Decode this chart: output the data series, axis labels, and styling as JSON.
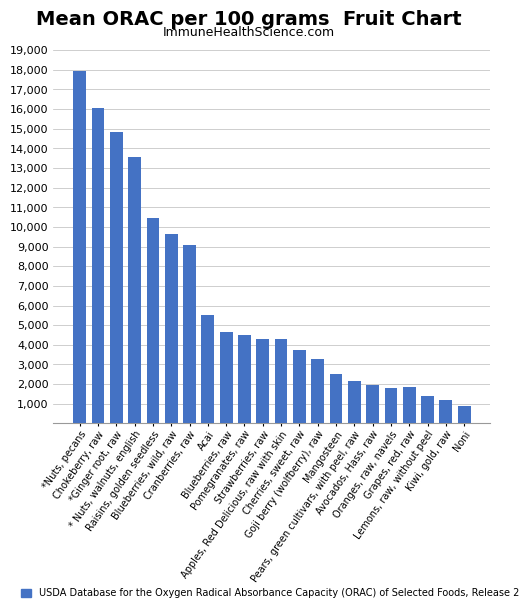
{
  "title": "Mean ORAC per 100 grams  Fruit Chart",
  "subtitle": "ImmuneHealthScience.com",
  "categories": [
    "*Nuts, pecans",
    "Chokeberry, raw",
    "*Ginger root, raw",
    "* Nuts, walnuts, english",
    "Raisins, golden seedless",
    "Blueberries, wild, raw",
    "Cranberries, raw",
    "Acai",
    "Blueberries, raw",
    "Pomegranates, raw",
    "Strawberries, raw",
    "Apples, Red Delicious, raw with skin",
    "Cherries, sweet, raw",
    "Goji berry (wolfberry), raw",
    "Mangosteen",
    "Pears, green cultivars, with peel, raw",
    "Avocados, Hass, raw",
    "Oranges, raw, navels",
    "Grapes, red, raw",
    "Lemons, raw, without peel",
    "Kiwi, gold, raw",
    "Noni"
  ],
  "values": [
    17940,
    16062,
    14840,
    13541,
    10450,
    9621,
    9090,
    5500,
    4669,
    4479,
    4302,
    4275,
    3747,
    3290,
    2490,
    2163,
    1933,
    1819,
    1837,
    1380,
    1210,
    859
  ],
  "bar_color": "#4472C4",
  "legend_color": "#4472C4",
  "legend_text": "USDA Database for the Oxygen Radical Absorbance Capacity (ORAC) of Selected Foods, Release 2",
  "ylim": [
    0,
    19000
  ],
  "yticks": [
    0,
    1000,
    2000,
    3000,
    4000,
    5000,
    6000,
    7000,
    8000,
    9000,
    10000,
    11000,
    12000,
    13000,
    14000,
    15000,
    16000,
    17000,
    18000,
    19000
  ],
  "ytick_labels": [
    "",
    "1,000",
    "2,000",
    "3,000",
    "4,000",
    "5,000",
    "6,000",
    "7,000",
    "8,000",
    "9,000",
    "10,000",
    "11,000",
    "12,000",
    "13,000",
    "14,000",
    "15,000",
    "16,000",
    "17,000",
    "18,000",
    "19,000"
  ],
  "bg_color": "#FFFFFF",
  "grid_color": "#BBBBBB",
  "bar_width": 0.7,
  "title_fontsize": 14,
  "subtitle_fontsize": 9,
  "ytick_fontsize": 8,
  "xtick_fontsize": 7,
  "legend_fontsize": 7
}
